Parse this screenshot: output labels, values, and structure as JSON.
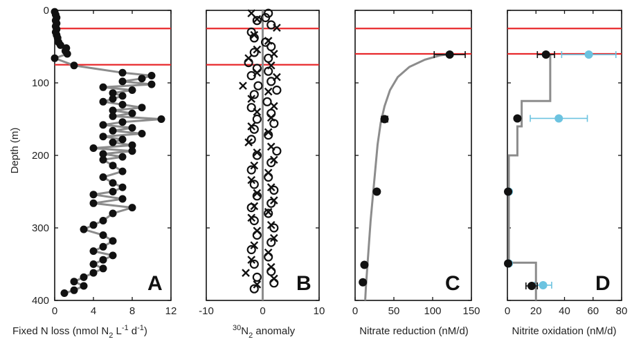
{
  "y_axis": {
    "label": "Depth (m)",
    "range": [
      0,
      400
    ],
    "inverted": true,
    "ticks": [
      0,
      100,
      200,
      300,
      400
    ],
    "tick_labels": [
      "0",
      "100",
      "200",
      "300",
      "400"
    ]
  },
  "colors": {
    "reference_lines": "#e8282b",
    "model_line": "#8c8c8c",
    "points": "#111111",
    "blue_points": "#6cc3e0"
  },
  "chart_data": [
    {
      "type": "scatter",
      "panel": "A",
      "xlabel": "Fixed N loss (nmol N",
      "xlabel_sub": "2",
      "xlabel_rest": " L",
      "xlabel_sup": "-1",
      "xlabel_end": " d",
      "xlabel_sup2": "-1",
      "xlabel_close": ")",
      "xlim": [
        0,
        12
      ],
      "xticks": [
        0,
        4,
        8,
        12
      ],
      "xtick_labels": [
        "0",
        "4",
        "8",
        "12"
      ],
      "hlines": [
        25,
        75
      ],
      "profile": [
        [
          0,
          2
        ],
        [
          0.1,
          6
        ],
        [
          0.2,
          10
        ],
        [
          0.1,
          14
        ],
        [
          0.2,
          18
        ],
        [
          0.1,
          22
        ],
        [
          0.2,
          26
        ],
        [
          0.1,
          30
        ],
        [
          0.2,
          34
        ],
        [
          0.3,
          38
        ],
        [
          0.4,
          44
        ],
        [
          0.6,
          48
        ],
        [
          1.2,
          52
        ],
        [
          1.1,
          56
        ],
        [
          1.3,
          60
        ],
        [
          0,
          66
        ],
        [
          2,
          76
        ],
        [
          7,
          86
        ],
        [
          10,
          90
        ],
        [
          9,
          94
        ],
        [
          7,
          98
        ],
        [
          10,
          102
        ],
        [
          5,
          106
        ],
        [
          8,
          110
        ],
        [
          6,
          114
        ],
        [
          7,
          118
        ],
        [
          6,
          122
        ],
        [
          5,
          126
        ],
        [
          7,
          130
        ],
        [
          9,
          134
        ],
        [
          6,
          138
        ],
        [
          8,
          142
        ],
        [
          6,
          146
        ],
        [
          11,
          150
        ],
        [
          7,
          154
        ],
        [
          5,
          158
        ],
        [
          8,
          162
        ],
        [
          6,
          166
        ],
        [
          9,
          170
        ],
        [
          5,
          174
        ],
        [
          7,
          178
        ],
        [
          6,
          182
        ],
        [
          8,
          186
        ],
        [
          4,
          190
        ],
        [
          8,
          194
        ],
        [
          5,
          198
        ],
        [
          7,
          202
        ],
        [
          5,
          206
        ],
        [
          6,
          214
        ],
        [
          7,
          222
        ],
        [
          5,
          230
        ],
        [
          6,
          238
        ],
        [
          7,
          244
        ],
        [
          6,
          250
        ],
        [
          4,
          254
        ],
        [
          7,
          260
        ],
        [
          4,
          266
        ],
        [
          8,
          272
        ],
        [
          6,
          280
        ],
        [
          5,
          290
        ],
        [
          4,
          296
        ],
        [
          3,
          302
        ],
        [
          5,
          310
        ],
        [
          6,
          318
        ],
        [
          5,
          326
        ],
        [
          4,
          332
        ],
        [
          6,
          338
        ],
        [
          5,
          344
        ],
        [
          4,
          350
        ],
        [
          5,
          356
        ],
        [
          4,
          362
        ],
        [
          3,
          368
        ],
        [
          2,
          374
        ],
        [
          3,
          380
        ],
        [
          2,
          386
        ],
        [
          1,
          390
        ]
      ]
    },
    {
      "type": "scatter",
      "panel": "B",
      "xlabel_sup": "30",
      "xlabel_mid": "N",
      "xlabel_sub": "2",
      "xlabel_rest": " anomaly",
      "xlim": [
        -10,
        10
      ],
      "xticks": [
        -10,
        0,
        10
      ],
      "xtick_labels": [
        "-10",
        "0",
        "10"
      ],
      "hlines": [
        25,
        75
      ],
      "vline": 0,
      "circles": [
        [
          1,
          4
        ],
        [
          0.5,
          10
        ],
        [
          -1,
          14
        ],
        [
          1.5,
          20
        ],
        [
          -2,
          30
        ],
        [
          -1.5,
          38
        ],
        [
          0.5,
          44
        ],
        [
          1.5,
          50
        ],
        [
          -1.5,
          58
        ],
        [
          1,
          66
        ],
        [
          -2.5,
          72
        ],
        [
          -1,
          80
        ],
        [
          1,
          84
        ],
        [
          -2,
          90
        ],
        [
          1.5,
          98
        ],
        [
          -0.8,
          104
        ],
        [
          2.5,
          110
        ],
        [
          -1.5,
          116
        ],
        [
          0.8,
          126
        ],
        [
          -2,
          134
        ],
        [
          1.5,
          142
        ],
        [
          -1,
          150
        ],
        [
          2,
          156
        ],
        [
          -1.5,
          164
        ],
        [
          1,
          172
        ],
        [
          -2,
          178
        ],
        [
          2.5,
          194
        ],
        [
          -1,
          200
        ],
        [
          1.5,
          210
        ],
        [
          -2,
          220
        ],
        [
          1,
          230
        ],
        [
          -1.5,
          240
        ],
        [
          2,
          248
        ],
        [
          -1,
          256
        ],
        [
          1.5,
          266
        ],
        [
          -2,
          272
        ],
        [
          1,
          280
        ],
        [
          -1.5,
          290
        ],
        [
          2,
          300
        ],
        [
          -1,
          310
        ],
        [
          1.5,
          320
        ],
        [
          -2,
          330
        ],
        [
          1,
          340
        ],
        [
          -1.5,
          350
        ],
        [
          1.5,
          360
        ],
        [
          -1,
          368
        ],
        [
          2,
          376
        ],
        [
          -1.5,
          384
        ]
      ],
      "crosses": [
        [
          -2,
          4
        ],
        [
          -1,
          12
        ],
        [
          2.5,
          24
        ],
        [
          -1.5,
          34
        ],
        [
          1,
          42
        ],
        [
          -1,
          54
        ],
        [
          2,
          60
        ],
        [
          -2.5,
          66
        ],
        [
          1.5,
          76
        ],
        [
          -1,
          86
        ],
        [
          2.5,
          92
        ],
        [
          -3.5,
          104
        ],
        [
          1,
          112
        ],
        [
          -2,
          122
        ],
        [
          2,
          132
        ],
        [
          -1,
          140
        ],
        [
          1.5,
          148
        ],
        [
          -2,
          160
        ],
        [
          1,
          168
        ],
        [
          -2.5,
          182
        ],
        [
          1.5,
          188
        ],
        [
          -1,
          196
        ],
        [
          2,
          206
        ],
        [
          -1.5,
          214
        ],
        [
          1,
          224
        ],
        [
          -2,
          234
        ],
        [
          1.5,
          244
        ],
        [
          -1,
          252
        ],
        [
          2,
          262
        ],
        [
          -1.5,
          270
        ],
        [
          1,
          278
        ],
        [
          -2,
          286
        ],
        [
          1.5,
          296
        ],
        [
          -1,
          304
        ],
        [
          2,
          314
        ],
        [
          -1.5,
          324
        ],
        [
          1,
          334
        ],
        [
          -2,
          344
        ],
        [
          1.5,
          354
        ],
        [
          -3,
          362
        ],
        [
          2,
          370
        ],
        [
          -1,
          378
        ]
      ]
    },
    {
      "type": "line",
      "panel": "C",
      "xlabel": "Nitrate reduction (nM/d)",
      "xlim": [
        0,
        150
      ],
      "xticks": [
        0,
        50,
        100,
        150
      ],
      "xtick_labels": [
        "0",
        "50",
        "100",
        "150"
      ],
      "hlines": [
        25,
        60
      ],
      "curve": [
        [
          125,
          60
        ],
        [
          110,
          62
        ],
        [
          90,
          68
        ],
        [
          70,
          78
        ],
        [
          55,
          92
        ],
        [
          45,
          110
        ],
        [
          38,
          132
        ],
        [
          33,
          155
        ],
        [
          29,
          185
        ],
        [
          26,
          220
        ],
        [
          23,
          255
        ],
        [
          20,
          290
        ],
        [
          18,
          320
        ],
        [
          16,
          350
        ],
        [
          14,
          380
        ],
        [
          13,
          400
        ]
      ],
      "points": [
        {
          "x": 122,
          "y": 61,
          "xerr": 20
        },
        {
          "x": 38,
          "y": 150,
          "xerr": 4
        },
        {
          "x": 28,
          "y": 250,
          "xerr": 0
        },
        {
          "x": 12,
          "y": 351,
          "xerr": 0
        },
        {
          "x": 10,
          "y": 375,
          "xerr": 0
        }
      ]
    },
    {
      "type": "line",
      "panel": "D",
      "xlabel": "Nitrite oxidation (nM/d)",
      "xlim": [
        0,
        80
      ],
      "xticks": [
        0,
        20,
        40,
        60,
        80
      ],
      "xtick_labels": [
        "0",
        "20",
        "40",
        "60",
        "80"
      ],
      "hlines": [
        25,
        60
      ],
      "step_profile": [
        [
          30,
          60
        ],
        [
          30,
          125
        ],
        [
          10,
          125
        ],
        [
          10,
          160
        ],
        [
          7,
          160
        ],
        [
          7,
          200
        ],
        [
          1,
          200
        ],
        [
          1,
          348
        ],
        [
          20,
          348
        ],
        [
          20,
          400
        ]
      ],
      "black_points": [
        {
          "x": 27,
          "y": 61,
          "xerr": 6
        },
        {
          "x": 7,
          "y": 149,
          "xerr": 0
        },
        {
          "x": 0.5,
          "y": 250,
          "xerr": 0
        },
        {
          "x": 0.5,
          "y": 349,
          "xerr": 0
        },
        {
          "x": 17,
          "y": 380,
          "xerr": 4
        }
      ],
      "blue_points": [
        {
          "x": 57,
          "y": 61,
          "xerr": 19
        },
        {
          "x": 36,
          "y": 149,
          "xerr": 20
        },
        {
          "x": 1,
          "y": 250,
          "xerr": 0
        },
        {
          "x": 1,
          "y": 349,
          "xerr": 0
        },
        {
          "x": 25,
          "y": 379,
          "xerr": 6
        }
      ]
    }
  ]
}
